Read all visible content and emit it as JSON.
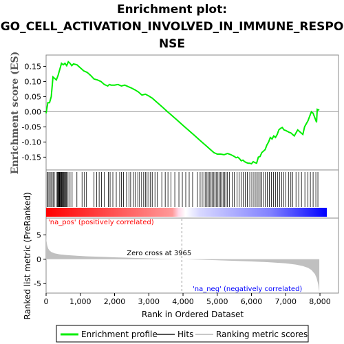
{
  "chart_data": {
    "type": "line",
    "title_lines": [
      "Enrichment plot:",
      "GO_CELL_ACTIVATION_INVOLVED_IN_IMMUNE_RESPO",
      "NSE"
    ],
    "xlabel": "Rank in Ordered Dataset",
    "xlim": [
      0,
      8200
    ],
    "x_ticks": [
      0,
      1000,
      2000,
      3000,
      4000,
      5000,
      6000,
      7000,
      8000
    ],
    "x_tick_labels": [
      "0",
      "1,000",
      "2,000",
      "3,000",
      "4,000",
      "5,000",
      "6,000",
      "7,000",
      "8,000"
    ],
    "es_panel": {
      "ylabel": "Enrichment score (ES)",
      "ylim": [
        -0.19,
        0.185
      ],
      "y_ticks": [
        -0.15,
        -0.1,
        -0.05,
        0.0,
        0.05,
        0.1,
        0.15
      ],
      "y_tick_labels": [
        "-0.15",
        "-0.10",
        "-0.05",
        "0.00",
        "0.05",
        "0.10",
        "0.15"
      ],
      "line_color": "#00ee00",
      "points": [
        [
          0,
          -0.005
        ],
        [
          50,
          0.03
        ],
        [
          100,
          0.03
        ],
        [
          150,
          0.05
        ],
        [
          200,
          0.115
        ],
        [
          300,
          0.105
        ],
        [
          350,
          0.12
        ],
        [
          400,
          0.14
        ],
        [
          450,
          0.16
        ],
        [
          500,
          0.155
        ],
        [
          550,
          0.16
        ],
        [
          600,
          0.152
        ],
        [
          650,
          0.165
        ],
        [
          700,
          0.16
        ],
        [
          750,
          0.152
        ],
        [
          800,
          0.158
        ],
        [
          900,
          0.155
        ],
        [
          1000,
          0.145
        ],
        [
          1100,
          0.135
        ],
        [
          1200,
          0.13
        ],
        [
          1300,
          0.12
        ],
        [
          1400,
          0.108
        ],
        [
          1500,
          0.105
        ],
        [
          1600,
          0.1
        ],
        [
          1700,
          0.09
        ],
        [
          1800,
          0.085
        ],
        [
          1850,
          0.09
        ],
        [
          1900,
          0.088
        ],
        [
          2000,
          0.088
        ],
        [
          2100,
          0.09
        ],
        [
          2200,
          0.085
        ],
        [
          2300,
          0.088
        ],
        [
          2400,
          0.083
        ],
        [
          2500,
          0.078
        ],
        [
          2600,
          0.072
        ],
        [
          2700,
          0.065
        ],
        [
          2800,
          0.055
        ],
        [
          2900,
          0.058
        ],
        [
          3000,
          0.052
        ],
        [
          3100,
          0.045
        ],
        [
          3200,
          0.035
        ],
        [
          3300,
          0.025
        ],
        [
          3400,
          0.015
        ],
        [
          3500,
          0.005
        ],
        [
          3600,
          -0.005
        ],
        [
          3700,
          -0.015
        ],
        [
          3800,
          -0.025
        ],
        [
          3900,
          -0.035
        ],
        [
          4000,
          -0.045
        ],
        [
          4100,
          -0.055
        ],
        [
          4200,
          -0.065
        ],
        [
          4300,
          -0.075
        ],
        [
          4400,
          -0.085
        ],
        [
          4500,
          -0.095
        ],
        [
          4600,
          -0.105
        ],
        [
          4700,
          -0.115
        ],
        [
          4800,
          -0.125
        ],
        [
          4900,
          -0.135
        ],
        [
          5000,
          -0.14
        ],
        [
          5100,
          -0.14
        ],
        [
          5200,
          -0.142
        ],
        [
          5300,
          -0.138
        ],
        [
          5400,
          -0.142
        ],
        [
          5500,
          -0.148
        ],
        [
          5550,
          -0.152
        ],
        [
          5600,
          -0.15
        ],
        [
          5650,
          -0.155
        ],
        [
          5700,
          -0.162
        ],
        [
          5750,
          -0.16
        ],
        [
          5800,
          -0.165
        ],
        [
          5850,
          -0.168
        ],
        [
          5900,
          -0.17
        ],
        [
          5950,
          -0.17
        ],
        [
          6000,
          -0.172
        ],
        [
          6050,
          -0.165
        ],
        [
          6100,
          -0.168
        ],
        [
          6150,
          -0.17
        ],
        [
          6200,
          -0.15
        ],
        [
          6250,
          -0.148
        ],
        [
          6300,
          -0.135
        ],
        [
          6350,
          -0.13
        ],
        [
          6400,
          -0.125
        ],
        [
          6450,
          -0.11
        ],
        [
          6500,
          -0.1
        ],
        [
          6550,
          -0.085
        ],
        [
          6600,
          -0.09
        ],
        [
          6650,
          -0.08
        ],
        [
          6700,
          -0.085
        ],
        [
          6750,
          -0.075
        ],
        [
          6800,
          -0.06
        ],
        [
          6850,
          -0.055
        ],
        [
          6900,
          -0.052
        ],
        [
          6950,
          -0.06
        ],
        [
          7000,
          -0.062
        ],
        [
          7050,
          -0.065
        ],
        [
          7100,
          -0.068
        ],
        [
          7150,
          -0.07
        ],
        [
          7200,
          -0.075
        ],
        [
          7250,
          -0.08
        ],
        [
          7300,
          -0.07
        ],
        [
          7350,
          -0.06
        ],
        [
          7400,
          -0.065
        ],
        [
          7450,
          -0.07
        ],
        [
          7500,
          -0.075
        ],
        [
          7550,
          -0.05
        ],
        [
          7600,
          -0.04
        ],
        [
          7650,
          -0.03
        ],
        [
          7700,
          -0.015
        ],
        [
          7750,
          0.0
        ],
        [
          7800,
          -0.005
        ],
        [
          7850,
          -0.02
        ],
        [
          7900,
          -0.035
        ],
        [
          7920,
          0.008
        ],
        [
          7980,
          0.005
        ]
      ]
    },
    "hits_panel": {
      "hit_ranks": [
        30,
        60,
        95,
        140,
        175,
        205,
        240,
        300,
        330,
        350,
        370,
        385,
        400,
        420,
        440,
        455,
        470,
        490,
        510,
        530,
        560,
        580,
        600,
        640,
        700,
        760,
        900,
        1050,
        1120,
        1180,
        1400,
        1480,
        1550,
        1620,
        1700,
        1820,
        1870,
        1950,
        2050,
        2150,
        2200,
        2260,
        2350,
        2420,
        2470,
        2550,
        2600,
        2680,
        2730,
        2790,
        2850,
        2900,
        2950,
        3000,
        3050,
        3100,
        3180,
        3250,
        3380,
        3480,
        3560,
        3650,
        3760,
        3880,
        3980,
        4080,
        4180,
        4280,
        4420,
        4500,
        4560,
        4610,
        4660,
        4700,
        4740,
        4780,
        4820,
        4860,
        4900,
        4940,
        4980,
        5020,
        5060,
        5100,
        5140,
        5180,
        5220,
        5260,
        5300,
        5360,
        5440,
        5500,
        5580,
        5640,
        5700,
        5760,
        5820,
        5880,
        5950,
        6010,
        6070,
        6130,
        6190,
        6250,
        6300,
        6350,
        6400,
        6460,
        6520,
        6580,
        6640,
        6700,
        6760,
        6820,
        6880,
        6940,
        7000,
        7080,
        7150,
        7200,
        7300,
        7380,
        7460,
        7560,
        7650,
        7720,
        7800,
        7880,
        7940
      ]
    },
    "metric_panel": {
      "ylabel": "Ranked list metric (PreRanked)",
      "ylim": [
        -6.8,
        8.3
      ],
      "y_ticks": [
        -5,
        0,
        5
      ],
      "y_tick_labels": [
        "-5",
        "0",
        "5"
      ],
      "fill_color": "#c0c0c0",
      "points": [
        [
          0,
          6.1
        ],
        [
          10,
          3.8
        ],
        [
          30,
          2.9
        ],
        [
          60,
          2.2
        ],
        [
          100,
          1.8
        ],
        [
          150,
          1.5
        ],
        [
          250,
          1.2
        ],
        [
          400,
          1.0
        ],
        [
          600,
          0.85
        ],
        [
          900,
          0.72
        ],
        [
          1200,
          0.6
        ],
        [
          1600,
          0.5
        ],
        [
          2000,
          0.4
        ],
        [
          2500,
          0.28
        ],
        [
          3000,
          0.18
        ],
        [
          3500,
          0.08
        ],
        [
          3965,
          0.0
        ],
        [
          4500,
          -0.1
        ],
        [
          5000,
          -0.2
        ],
        [
          5500,
          -0.32
        ],
        [
          6000,
          -0.45
        ],
        [
          6500,
          -0.6
        ],
        [
          7000,
          -0.85
        ],
        [
          7300,
          -1.1
        ],
        [
          7500,
          -1.4
        ],
        [
          7650,
          -1.75
        ],
        [
          7750,
          -2.2
        ],
        [
          7850,
          -3.0
        ],
        [
          7900,
          -3.8
        ],
        [
          7950,
          -5.2
        ],
        [
          7980,
          -6.8
        ]
      ],
      "zero_cross_label": "Zero cross at 3965",
      "zero_cross_rank": 3965,
      "pos_label": "'na_pos' (positively correlated)",
      "neg_label": "'na_neg' (negatively correlated)",
      "pos_color": "#ff0000",
      "neg_color": "#0000ff"
    },
    "legend": {
      "entries": [
        {
          "label": "Enrichment profile",
          "color": "#00ee00"
        },
        {
          "label": "Hits",
          "color": "#555555"
        },
        {
          "label": "Ranking metric scores",
          "color": "#c8c8c8"
        }
      ]
    }
  }
}
